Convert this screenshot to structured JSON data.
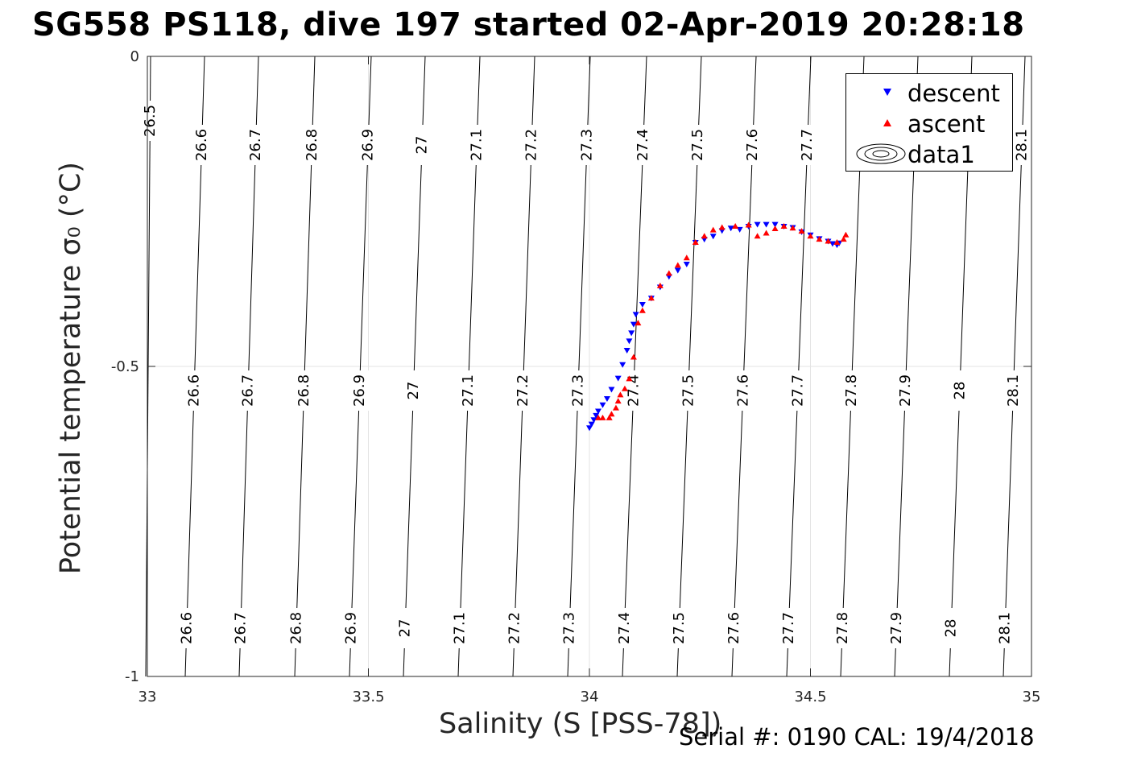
{
  "title": "SG558 PS118, dive 197 started 02-Apr-2019 20:28:18",
  "footer": "Serial #: 0190  CAL: 19/4/2018",
  "chart_data": {
    "type": "scatter",
    "title": "SG558 PS118, dive 197 started 02-Apr-2019 20:28:18",
    "xlabel": "Salinity (S [PSS-78])",
    "ylabel": "Potential temperature σ₀ (°C)",
    "xlim": [
      33,
      35
    ],
    "ylim": [
      -1,
      0
    ],
    "xticks": [
      33,
      33.5,
      34,
      34.5,
      35
    ],
    "xtick_labels": [
      "33",
      "33.5",
      "34",
      "34.5",
      "35"
    ],
    "yticks": [
      -1,
      -0.5,
      0
    ],
    "ytick_labels": [
      "-1",
      "-0.5",
      "0"
    ],
    "grid": true,
    "legend_position": "top-right",
    "legend": [
      "descent",
      "ascent",
      "data1"
    ],
    "colors": {
      "descent": "#0000ff",
      "ascent": "#ff0000",
      "contours": "#000000",
      "grid": "#e3e3e3"
    },
    "series": [
      {
        "name": "descent",
        "marker": "triangle-down",
        "x": [
          34.0,
          34.005,
          34.01,
          34.015,
          34.02,
          34.03,
          34.04,
          34.05,
          34.065,
          34.075,
          34.085,
          34.09,
          34.095,
          34.1,
          34.105,
          34.12,
          34.14,
          34.16,
          34.18,
          34.2,
          34.22,
          34.24,
          34.26,
          34.28,
          34.3,
          34.32,
          34.34,
          34.36,
          34.38,
          34.4,
          34.42,
          34.44,
          34.46,
          34.48,
          34.5,
          34.52,
          34.54,
          34.55,
          34.56,
          34.565
        ],
        "y": [
          -0.599,
          -0.593,
          -0.586,
          -0.579,
          -0.572,
          -0.562,
          -0.552,
          -0.537,
          -0.519,
          -0.497,
          -0.474,
          -0.459,
          -0.446,
          -0.432,
          -0.416,
          -0.4,
          -0.39,
          -0.372,
          -0.355,
          -0.345,
          -0.335,
          -0.3,
          -0.295,
          -0.29,
          -0.281,
          -0.277,
          -0.279,
          -0.274,
          -0.271,
          -0.271,
          -0.271,
          -0.274,
          -0.276,
          -0.283,
          -0.288,
          -0.294,
          -0.298,
          -0.302,
          -0.304,
          -0.301
        ]
      },
      {
        "name": "ascent",
        "marker": "triangle-up",
        "x": [
          34.02,
          34.03,
          34.045,
          34.05,
          34.06,
          34.065,
          34.07,
          34.08,
          34.09,
          34.1,
          34.11,
          34.12,
          34.14,
          34.16,
          34.18,
          34.2,
          34.22,
          34.24,
          34.26,
          34.28,
          34.3,
          34.33,
          34.36,
          34.38,
          34.4,
          34.42,
          34.44,
          34.46,
          34.48,
          34.5,
          34.52,
          34.54,
          34.56,
          34.575,
          34.58
        ],
        "y": [
          -0.583,
          -0.583,
          -0.583,
          -0.577,
          -0.567,
          -0.556,
          -0.546,
          -0.536,
          -0.52,
          -0.485,
          -0.43,
          -0.41,
          -0.39,
          -0.37,
          -0.35,
          -0.337,
          -0.325,
          -0.3,
          -0.29,
          -0.28,
          -0.276,
          -0.274,
          -0.272,
          -0.29,
          -0.285,
          -0.278,
          -0.274,
          -0.277,
          -0.282,
          -0.29,
          -0.295,
          -0.298,
          -0.3,
          -0.295,
          -0.288
        ]
      }
    ],
    "contours": {
      "name": "data1",
      "levels": [
        "26.5",
        "26.6",
        "26.7",
        "26.8",
        "26.9",
        "27",
        "27.1",
        "27.2",
        "27.3",
        "27.4",
        "27.5",
        "27.6",
        "27.7",
        "27.8",
        "27.9",
        "28",
        "28.1"
      ]
    }
  }
}
